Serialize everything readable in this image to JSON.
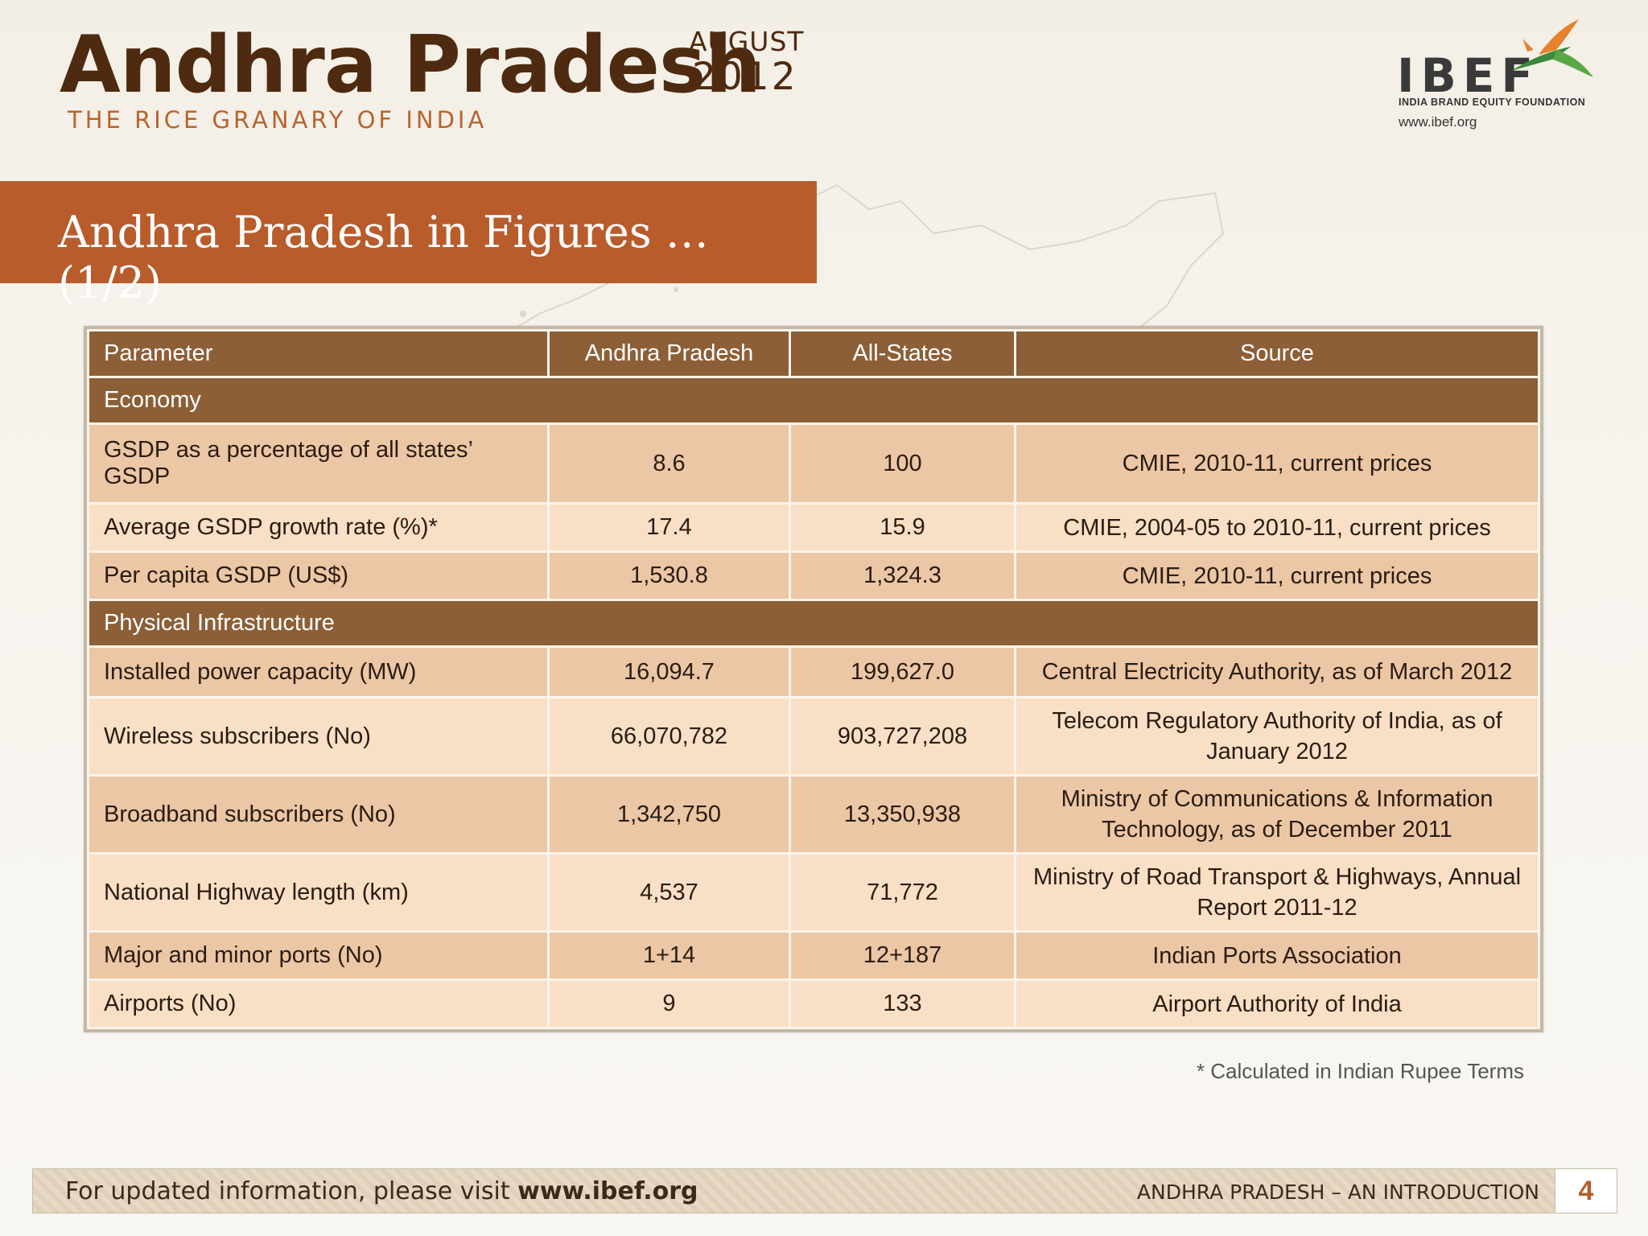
{
  "header": {
    "title": "Andhra Pradesh",
    "subtitle": "THE RICE GRANARY OF INDIA",
    "month": "AUGUST",
    "year": "2012"
  },
  "logo": {
    "wordmark": "IBEF",
    "tagline": "INDIA BRAND EQUITY FOUNDATION",
    "url": "www.ibef.org"
  },
  "section_title": "Andhra Pradesh in Figures … (1/2)",
  "table": {
    "headers": [
      "Parameter",
      "Andhra Pradesh",
      "All-States",
      "Source"
    ],
    "groups": [
      {
        "name": "Economy",
        "rows": [
          {
            "parameter": "GSDP as a percentage of all states’ GSDP",
            "state": "8.6",
            "all": "100",
            "source": "CMIE, 2010-11, current prices"
          },
          {
            "parameter": "Average GSDP growth rate (%)*",
            "state": "17.4",
            "all": "15.9",
            "source": "CMIE, 2004-05 to 2010-11, current prices"
          },
          {
            "parameter": "Per capita GSDP (US$)",
            "state": "1,530.8",
            "all": "1,324.3",
            "source": "CMIE, 2010-11, current prices"
          }
        ]
      },
      {
        "name": "Physical Infrastructure",
        "rows": [
          {
            "parameter": "Installed power capacity (MW)",
            "state": "16,094.7",
            "all": "199,627.0",
            "source": "Central Electricity Authority, as of March 2012"
          },
          {
            "parameter": "Wireless subscribers (No)",
            "state": "66,070,782",
            "all": "903,727,208",
            "source": "Telecom Regulatory Authority of India, as of January 2012"
          },
          {
            "parameter": "Broadband subscribers (No)",
            "state": "1,342,750",
            "all": "13,350,938",
            "source": "Ministry of Communications & Information Technology, as of December 2011"
          },
          {
            "parameter": "National Highway length (km)",
            "state": "4,537",
            "all": "71,772",
            "source": "Ministry of Road Transport & Highways, Annual Report 2011-12"
          },
          {
            "parameter": "Major and minor ports (No)",
            "state": "1+14",
            "all": "12+187",
            "source": "Indian Ports Association"
          },
          {
            "parameter": "Airports (No)",
            "state": "9",
            "all": "133",
            "source": "Airport Authority of India"
          }
        ]
      }
    ]
  },
  "footnote": "* Calculated in Indian Rupee Terms",
  "footer": {
    "left_text": "For updated information, please visit ",
    "left_link": "www.ibef.org",
    "right_text": "ANDHRA PRADESH – AN INTRODUCTION",
    "page_number": "4"
  },
  "colors": {
    "title": "#4e2a10",
    "accent": "#b85c2c",
    "table_header": "#8c5f37",
    "row_dark": "#ebc7a6",
    "row_light": "#f8dfc6"
  }
}
